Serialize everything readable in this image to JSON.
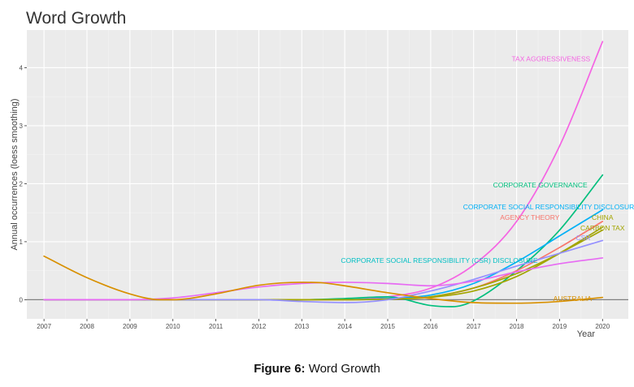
{
  "caption": {
    "figure_label": "Figure 6:",
    "figure_text": "Word Growth"
  },
  "chart_data": {
    "type": "line",
    "title": "Word Growth",
    "xlabel": "Year",
    "ylabel": "Annual occurrences (loess smoothing)",
    "xlim": [
      2006.6,
      2020.6
    ],
    "ylim": [
      -0.33,
      4.65
    ],
    "x_ticks": [
      2007,
      2008,
      2009,
      2010,
      2011,
      2012,
      2013,
      2014,
      2015,
      2016,
      2017,
      2018,
      2019,
      2020
    ],
    "y_ticks": [
      0,
      1,
      2,
      3,
      4
    ],
    "grid": true,
    "zero_line": true,
    "series": [
      {
        "name": "TAX AGGRESSIVENESS",
        "color": "#F564E3",
        "x": [
          2007,
          2010,
          2012,
          2013,
          2014,
          2015,
          2016,
          2017,
          2018,
          2019,
          2020
        ],
        "values": [
          0,
          0,
          0,
          0,
          0,
          0.05,
          0.2,
          0.6,
          1.35,
          2.65,
          4.45
        ],
        "label": {
          "x": 2018.8,
          "y": 4.15,
          "anchor": "middle"
        }
      },
      {
        "name": "CORPORATE GOVERNANCE",
        "color": "#00BF7D",
        "x": [
          2007,
          2013,
          2014,
          2015,
          2016,
          2016.5,
          2017,
          2018,
          2019,
          2020
        ],
        "values": [
          0,
          0,
          0.02,
          0.05,
          -0.1,
          -0.12,
          -0.02,
          0.5,
          1.2,
          2.15
        ],
        "label": {
          "x": 2018.55,
          "y": 1.98,
          "anchor": "middle"
        }
      },
      {
        "name": "CORPORATE SOCIAL RESPONSIBILITY DISCLOSURE",
        "color": "#00B0F6",
        "x": [
          2007,
          2013,
          2014,
          2015,
          2016,
          2017,
          2018,
          2019,
          2020
        ],
        "values": [
          0,
          0,
          0,
          0.02,
          0.08,
          0.28,
          0.65,
          1.1,
          1.55
        ],
        "label": {
          "x": 2018.8,
          "y": 1.6,
          "anchor": "middle"
        }
      },
      {
        "name": "AGENCY THEORY",
        "color": "#F8766D",
        "x": [
          2007,
          2013,
          2014,
          2015,
          2016,
          2017,
          2018,
          2019,
          2020
        ],
        "values": [
          0,
          0,
          0,
          0.01,
          0.05,
          0.2,
          0.5,
          0.9,
          1.35
        ],
        "label": {
          "x": 2019.0,
          "y": 1.42,
          "anchor": "end"
        }
      },
      {
        "name": "CHINA",
        "color": "#A3A500",
        "x": [
          2007,
          2013,
          2014,
          2015,
          2016,
          2017,
          2018,
          2019,
          2020
        ],
        "values": [
          0,
          0,
          0,
          0.01,
          0.04,
          0.15,
          0.4,
          0.8,
          1.25
        ],
        "label": {
          "x": 2020.0,
          "y": 1.42,
          "anchor": "middle"
        }
      },
      {
        "name": "CARBON TAX",
        "color": "#A3A500",
        "x": [
          2007,
          2013,
          2014,
          2015,
          2016,
          2017,
          2018,
          2019,
          2020
        ],
        "values": [
          0,
          0,
          0,
          0.01,
          0.05,
          0.2,
          0.45,
          0.8,
          1.2
        ],
        "label": {
          "x": 2020.0,
          "y": 1.24,
          "anchor": "middle"
        }
      },
      {
        "name": "CSR",
        "color": "#9590FF",
        "x": [
          2007,
          2012,
          2013,
          2014,
          2015,
          2016,
          2017,
          2018,
          2019,
          2020
        ],
        "values": [
          0,
          0,
          -0.03,
          -0.05,
          0,
          0.15,
          0.35,
          0.58,
          0.8,
          1.02
        ],
        "label": {
          "x": 2019.55,
          "y": 1.07,
          "anchor": "middle"
        }
      },
      {
        "name": "CORPORATE SOCIAL RESPONSIBILITY (CSR) DISCLOSURE",
        "color": "#E76BF3",
        "x": [
          2007,
          2009,
          2010,
          2011,
          2012,
          2013,
          2014,
          2015,
          2016,
          2017,
          2018,
          2019,
          2020
        ],
        "values": [
          0,
          0,
          0.03,
          0.12,
          0.22,
          0.28,
          0.3,
          0.28,
          0.24,
          0.32,
          0.48,
          0.62,
          0.72
        ],
        "label": {
          "x": 2016.2,
          "y": 0.68,
          "anchor": "middle",
          "color": "#00BFC4"
        }
      },
      {
        "name": "AUSTRALIA",
        "color": "#D89000",
        "x": [
          2007,
          2008,
          2009,
          2009.7,
          2010,
          2011,
          2012,
          2013,
          2013.5,
          2014,
          2015,
          2016,
          2017,
          2018,
          2019,
          2020
        ],
        "values": [
          0.75,
          0.38,
          0.1,
          0,
          0,
          0.1,
          0.25,
          0.3,
          0.29,
          0.24,
          0.12,
          0.02,
          -0.05,
          -0.06,
          -0.03,
          0.04
        ],
        "label": {
          "x": 2019.3,
          "y": 0.02,
          "anchor": "middle"
        }
      }
    ]
  }
}
